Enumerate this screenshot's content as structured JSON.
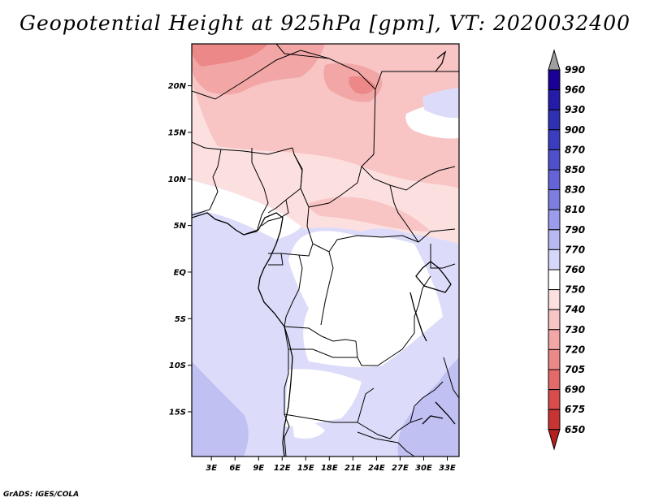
{
  "title": "Geopotential Height at 925hPa [gpm], VT: 2020032400",
  "credit": "GrADS: IGES/COLA",
  "colors": {
    "below_min": "#b41f1f",
    "above_max": "#a0a0a0"
  },
  "map": {
    "longitude_ticks": [
      "3E",
      "6E",
      "9E",
      "12E",
      "15E",
      "18E",
      "21E",
      "24E",
      "27E",
      "30E",
      "33E"
    ],
    "longitude_values": [
      3,
      6,
      9,
      12,
      15,
      18,
      21,
      24,
      27,
      30,
      33
    ],
    "latitude_ticks": [
      "20N",
      "15N",
      "10N",
      "5N",
      "EQ",
      "5S",
      "10S",
      "15S"
    ],
    "latitude_values": [
      20,
      15,
      10,
      5,
      0,
      -5,
      -10,
      -15
    ],
    "lon_range": [
      0.5,
      34.5
    ],
    "lat_range": [
      -19.8,
      24.5
    ]
  },
  "colorbar": {
    "levels": [
      "990",
      "960",
      "930",
      "900",
      "870",
      "850",
      "830",
      "810",
      "790",
      "770",
      "760",
      "750",
      "740",
      "730",
      "720",
      "705",
      "690",
      "675",
      "650"
    ],
    "colors": [
      "#1a0096",
      "#241ca8",
      "#3030b4",
      "#3c3cc0",
      "#5050cc",
      "#6464d8",
      "#7e7ee2",
      "#9c9cec",
      "#b8b8f2",
      "#d6d6fa",
      "#ffffff",
      "#fce0e0",
      "#f8c4c4",
      "#f2a6a6",
      "#ec8888",
      "#e46a6a",
      "#d84c4c",
      "#c83434",
      "#b41f1f"
    ]
  }
}
